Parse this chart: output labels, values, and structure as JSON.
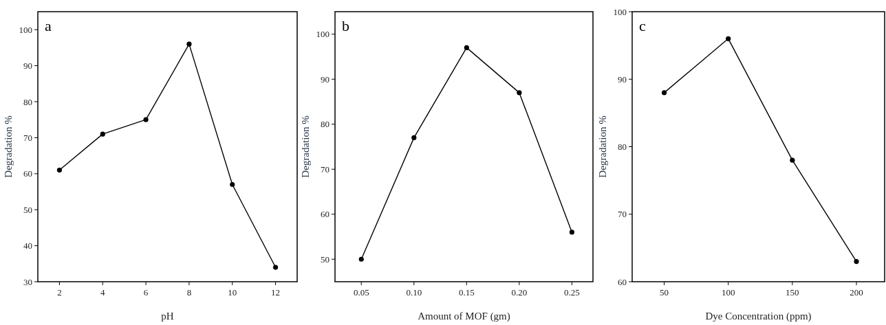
{
  "chart_data": [
    {
      "type": "line",
      "title": "a",
      "xlabel": "pH",
      "ylabel": "Degradation %",
      "x": [
        2,
        4,
        6,
        8,
        10,
        12
      ],
      "series": [
        {
          "color": "#000000",
          "values": [
            61,
            71,
            75,
            96,
            57,
            34
          ]
        }
      ],
      "xlim": [
        1,
        13
      ],
      "xticks": [
        2,
        4,
        6,
        8,
        10,
        12
      ],
      "ylim": [
        30,
        105
      ],
      "yticks": [
        30,
        40,
        50,
        60,
        70,
        80,
        90,
        100
      ],
      "marker": "circle",
      "line_style": "solid"
    },
    {
      "type": "line",
      "title": "b",
      "xlabel": "Amount of MOF (gm)",
      "ylabel": "Degradation %",
      "x": [
        0.05,
        0.1,
        0.15,
        0.2,
        0.25
      ],
      "series": [
        {
          "color": "#000000",
          "values": [
            50,
            77,
            97,
            87,
            56
          ]
        }
      ],
      "xlim": [
        0.025,
        0.27
      ],
      "xticks": [
        {
          "value": 0.05,
          "label": "0.05"
        },
        {
          "value": 0.1,
          "label": "0.10"
        },
        {
          "value": 0.15,
          "label": "0.15"
        },
        {
          "value": 0.2,
          "label": "0.20"
        },
        {
          "value": 0.25,
          "label": "0.25"
        }
      ],
      "ylim": [
        45,
        105
      ],
      "yticks": [
        50,
        60,
        70,
        80,
        90,
        100
      ],
      "marker": "circle",
      "line_style": "solid"
    },
    {
      "type": "line",
      "title": "c",
      "xlabel": "Dye Concentration (ppm)",
      "ylabel": "Degradation %",
      "x": [
        50,
        100,
        150,
        200
      ],
      "series": [
        {
          "color": "#000000",
          "values": [
            88,
            96,
            78,
            63
          ]
        }
      ],
      "xlim": [
        25,
        222
      ],
      "xticks": [
        50,
        100,
        150,
        200
      ],
      "ylim": [
        60,
        100
      ],
      "yticks": [
        60,
        70,
        80,
        90,
        100
      ],
      "marker": "circle",
      "line_style": "solid"
    }
  ]
}
